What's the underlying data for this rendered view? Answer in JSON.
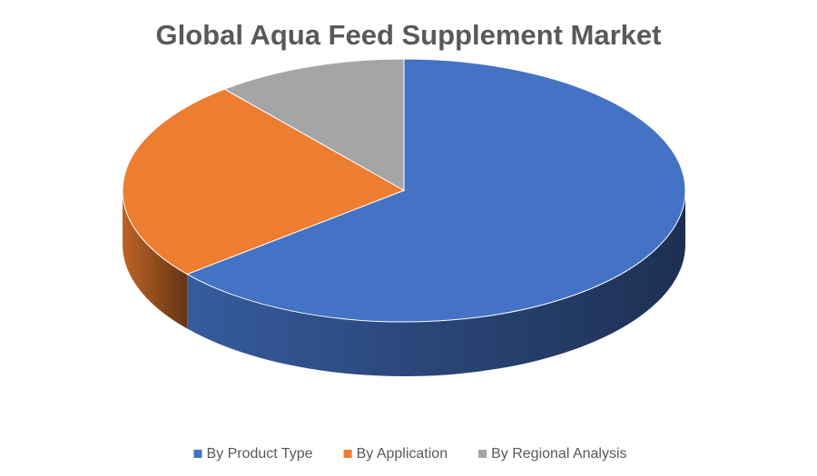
{
  "chart_data": {
    "type": "pie3d",
    "title": "Global Aqua Feed Supplement Market",
    "categories": [
      "By Product Type",
      "By Application",
      "By Regional Analysis"
    ],
    "values": [
      64,
      25,
      11
    ],
    "colors": [
      "#4472c4",
      "#ed7d31",
      "#a5a5a5"
    ],
    "legend": "bottom"
  }
}
